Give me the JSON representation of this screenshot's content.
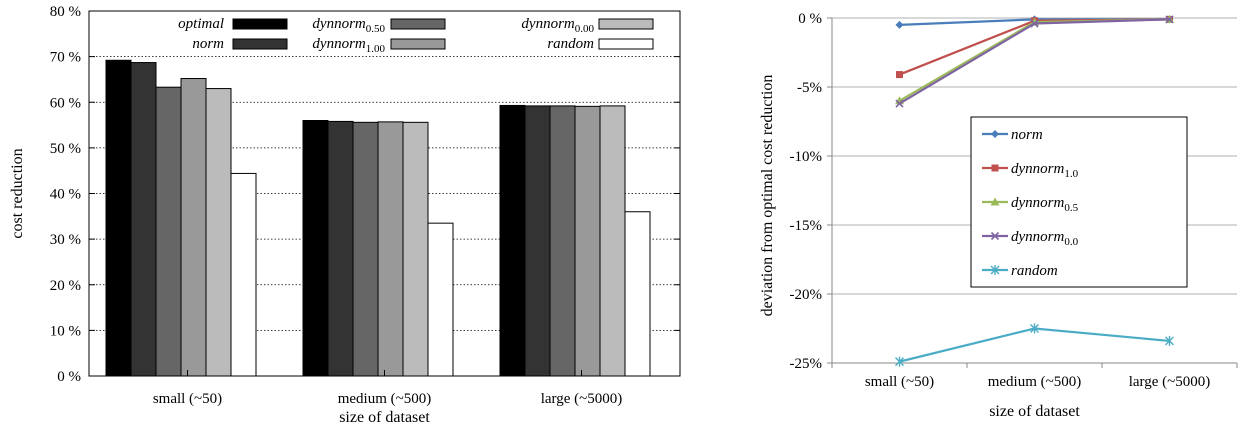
{
  "chart_data": [
    {
      "type": "bar",
      "categories": [
        "small (~50)",
        "medium (~500)",
        "large (~5000)"
      ],
      "series": [
        {
          "name": "optimal",
          "name_sub": "",
          "color": "#000000",
          "values": [
            69.2,
            56.0,
            59.3
          ]
        },
        {
          "name": "norm",
          "name_sub": "",
          "color": "#333333",
          "values": [
            68.7,
            55.8,
            59.2
          ]
        },
        {
          "name": "dynnorm",
          "name_sub": "0.50",
          "color": "#666666",
          "values": [
            63.3,
            55.6,
            59.2
          ]
        },
        {
          "name": "dynnorm",
          "name_sub": "1.00",
          "color": "#999999",
          "values": [
            65.2,
            55.7,
            59.1
          ]
        },
        {
          "name": "dynnorm",
          "name_sub": "0.00",
          "color": "#bbbbbb",
          "values": [
            63.0,
            55.6,
            59.2
          ]
        },
        {
          "name": "random",
          "name_sub": "",
          "color": "#ffffff",
          "values": [
            44.4,
            33.5,
            36.0
          ]
        }
      ],
      "xlabel": "size of dataset",
      "ylabel": "cost reduction",
      "ylim": [
        0,
        80
      ],
      "yticks": [
        "0 %",
        "10 %",
        "20 %",
        "30 %",
        "40 %",
        "50 %",
        "60 %",
        "70 %",
        "80 %"
      ],
      "grid": "dotted horizontal",
      "legend_position": "top"
    },
    {
      "type": "line",
      "categories": [
        "small (~50)",
        "medium (~500)",
        "large (~5000)"
      ],
      "series": [
        {
          "name": "norm",
          "name_sub": "",
          "color": "#4a7ebb",
          "marker": "diamond",
          "values": [
            -0.5,
            -0.1,
            -0.1
          ]
        },
        {
          "name": "dynnorm",
          "name_sub": "1.0",
          "color": "#c0504d",
          "marker": "square",
          "values": [
            -4.1,
            -0.2,
            -0.1
          ]
        },
        {
          "name": "dynnorm",
          "name_sub": "0.5",
          "color": "#9bbb59",
          "marker": "triangle",
          "values": [
            -6.0,
            -0.3,
            -0.1
          ]
        },
        {
          "name": "dynnorm",
          "name_sub": "0.0",
          "color": "#8064a2",
          "marker": "x",
          "values": [
            -6.2,
            -0.4,
            -0.1
          ]
        },
        {
          "name": "random",
          "name_sub": "",
          "color": "#4bacc6",
          "marker": "star",
          "values": [
            -24.9,
            -22.5,
            -23.4
          ]
        }
      ],
      "xlabel": "size of dataset",
      "ylabel": "deviation from optimal cost reduction",
      "ylim": [
        -25,
        0
      ],
      "yticks": [
        "0 %",
        "-5%",
        "-10%",
        "-15%",
        "-20%",
        "-25%"
      ],
      "grid": "solid horizontal",
      "legend_position": "center"
    }
  ]
}
